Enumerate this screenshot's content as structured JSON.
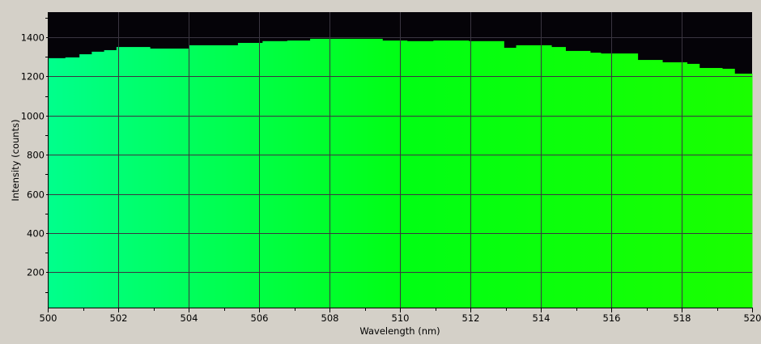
{
  "chart_data": {
    "type": "area",
    "title": "",
    "xlabel": "Wavelength (nm)",
    "ylabel": "Intensity (counts)",
    "xlim": [
      500,
      520
    ],
    "ylim": [
      20,
      1528
    ],
    "xticks": [
      500,
      502,
      504,
      506,
      508,
      510,
      512,
      514,
      516,
      518,
      520
    ],
    "yticks": [
      200,
      400,
      600,
      800,
      1000,
      1200,
      1400
    ],
    "grid": true,
    "background_color": "#050308",
    "grid_color": "#3a3540",
    "fill_gradient": [
      "#00ff8c",
      "#00ff14",
      "#1aff00"
    ],
    "steps": [
      {
        "x0": 500.0,
        "x1": 500.5,
        "y": 1293
      },
      {
        "x0": 500.5,
        "x1": 500.9,
        "y": 1297
      },
      {
        "x0": 500.9,
        "x1": 501.25,
        "y": 1313
      },
      {
        "x0": 501.25,
        "x1": 501.6,
        "y": 1326
      },
      {
        "x0": 501.6,
        "x1": 501.95,
        "y": 1334
      },
      {
        "x0": 501.95,
        "x1": 502.9,
        "y": 1350
      },
      {
        "x0": 502.9,
        "x1": 504.0,
        "y": 1342
      },
      {
        "x0": 504.0,
        "x1": 505.4,
        "y": 1359
      },
      {
        "x0": 505.4,
        "x1": 506.1,
        "y": 1371
      },
      {
        "x0": 506.1,
        "x1": 506.8,
        "y": 1380
      },
      {
        "x0": 506.8,
        "x1": 507.45,
        "y": 1383
      },
      {
        "x0": 507.45,
        "x1": 509.5,
        "y": 1392
      },
      {
        "x0": 509.5,
        "x1": 510.2,
        "y": 1383
      },
      {
        "x0": 510.2,
        "x1": 510.95,
        "y": 1380
      },
      {
        "x0": 510.95,
        "x1": 511.95,
        "y": 1383
      },
      {
        "x0": 511.95,
        "x1": 512.95,
        "y": 1380
      },
      {
        "x0": 512.95,
        "x1": 513.3,
        "y": 1346
      },
      {
        "x0": 513.3,
        "x1": 514.3,
        "y": 1359
      },
      {
        "x0": 514.3,
        "x1": 514.7,
        "y": 1350
      },
      {
        "x0": 514.7,
        "x1": 515.4,
        "y": 1330
      },
      {
        "x0": 515.4,
        "x1": 515.7,
        "y": 1321
      },
      {
        "x0": 515.7,
        "x1": 516.75,
        "y": 1317
      },
      {
        "x0": 516.75,
        "x1": 517.45,
        "y": 1284
      },
      {
        "x0": 517.45,
        "x1": 518.15,
        "y": 1272
      },
      {
        "x0": 518.15,
        "x1": 518.5,
        "y": 1264
      },
      {
        "x0": 518.5,
        "x1": 519.15,
        "y": 1243
      },
      {
        "x0": 519.15,
        "x1": 519.5,
        "y": 1239
      },
      {
        "x0": 519.5,
        "x1": 520.0,
        "y": 1214
      }
    ]
  }
}
